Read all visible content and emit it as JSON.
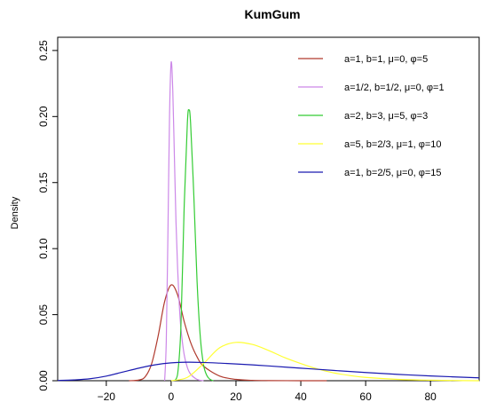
{
  "chart_data": {
    "type": "line",
    "title": "KumGum",
    "xlabel": "",
    "ylabel": "Density",
    "xlim": [
      -35,
      95
    ],
    "ylim": [
      0,
      0.26
    ],
    "x_ticks": [
      -20,
      0,
      20,
      40,
      60,
      80
    ],
    "x_tick_labels": [
      "−20",
      "0",
      "20",
      "40",
      "60",
      "80"
    ],
    "y_ticks": [
      0.0,
      0.05,
      0.1,
      0.15,
      0.2,
      0.25
    ],
    "y_tick_labels": [
      "0.00",
      "0.05",
      "0.10",
      "0.15",
      "0.20",
      "0.25"
    ],
    "grid": false,
    "legend_position": "top-right",
    "series": [
      {
        "name": "a=1, b=1, μ=0, φ=5",
        "color": "#b03a2e",
        "x": [
          -13,
          -10,
          -8,
          -6,
          -4,
          -2,
          0,
          2,
          4,
          6,
          8,
          10,
          15,
          20,
          25,
          30,
          40,
          48
        ],
        "y": [
          0.0,
          0.0005,
          0.003,
          0.013,
          0.034,
          0.06,
          0.0725,
          0.065,
          0.045,
          0.029,
          0.018,
          0.011,
          0.0035,
          0.001,
          0.0003,
          0.0001,
          0.0,
          0.0
        ]
      },
      {
        "name": "a=1/2, b=1/2, μ=0, φ=1",
        "color": "#cc88e8",
        "x": [
          -2,
          -1.5,
          -1,
          -0.5,
          0,
          0.5,
          1,
          1.5,
          2,
          2.5,
          3,
          4,
          5,
          6,
          8,
          10
        ],
        "y": [
          0.0,
          0.03,
          0.11,
          0.2,
          0.241,
          0.22,
          0.17,
          0.12,
          0.085,
          0.058,
          0.04,
          0.02,
          0.01,
          0.005,
          0.001,
          0.0
        ]
      },
      {
        "name": "a=2, b=3, μ=5, φ=3",
        "color": "#33cc33",
        "x": [
          1,
          2,
          3,
          4,
          5,
          5.5,
          6,
          7,
          8,
          9,
          10,
          11,
          12,
          13
        ],
        "y": [
          0.0,
          0.005,
          0.04,
          0.13,
          0.195,
          0.205,
          0.195,
          0.14,
          0.075,
          0.033,
          0.012,
          0.004,
          0.001,
          0.0
        ]
      },
      {
        "name": "a=5, b=2/3, μ=1, φ=10",
        "color": "#ffff33",
        "x": [
          0,
          5,
          10,
          15,
          20,
          25,
          30,
          35,
          40,
          45,
          50,
          55,
          60,
          70,
          80,
          90,
          95
        ],
        "y": [
          0.0,
          0.0025,
          0.013,
          0.025,
          0.029,
          0.0275,
          0.023,
          0.0175,
          0.013,
          0.009,
          0.006,
          0.004,
          0.0025,
          0.001,
          0.0004,
          0.0001,
          0.0
        ]
      },
      {
        "name": "a=1, b=2/5, μ=0, φ=15",
        "color": "#1a1ab0",
        "x": [
          -35,
          -30,
          -25,
          -20,
          -15,
          -10,
          -5,
          0,
          5,
          10,
          15,
          20,
          25,
          30,
          40,
          50,
          60,
          70,
          80,
          95
        ],
        "y": [
          0.0002,
          0.0006,
          0.0015,
          0.0035,
          0.0065,
          0.0095,
          0.012,
          0.0135,
          0.014,
          0.0138,
          0.0133,
          0.0127,
          0.012,
          0.0112,
          0.0095,
          0.0078,
          0.0062,
          0.0048,
          0.0036,
          0.0022
        ]
      }
    ]
  }
}
